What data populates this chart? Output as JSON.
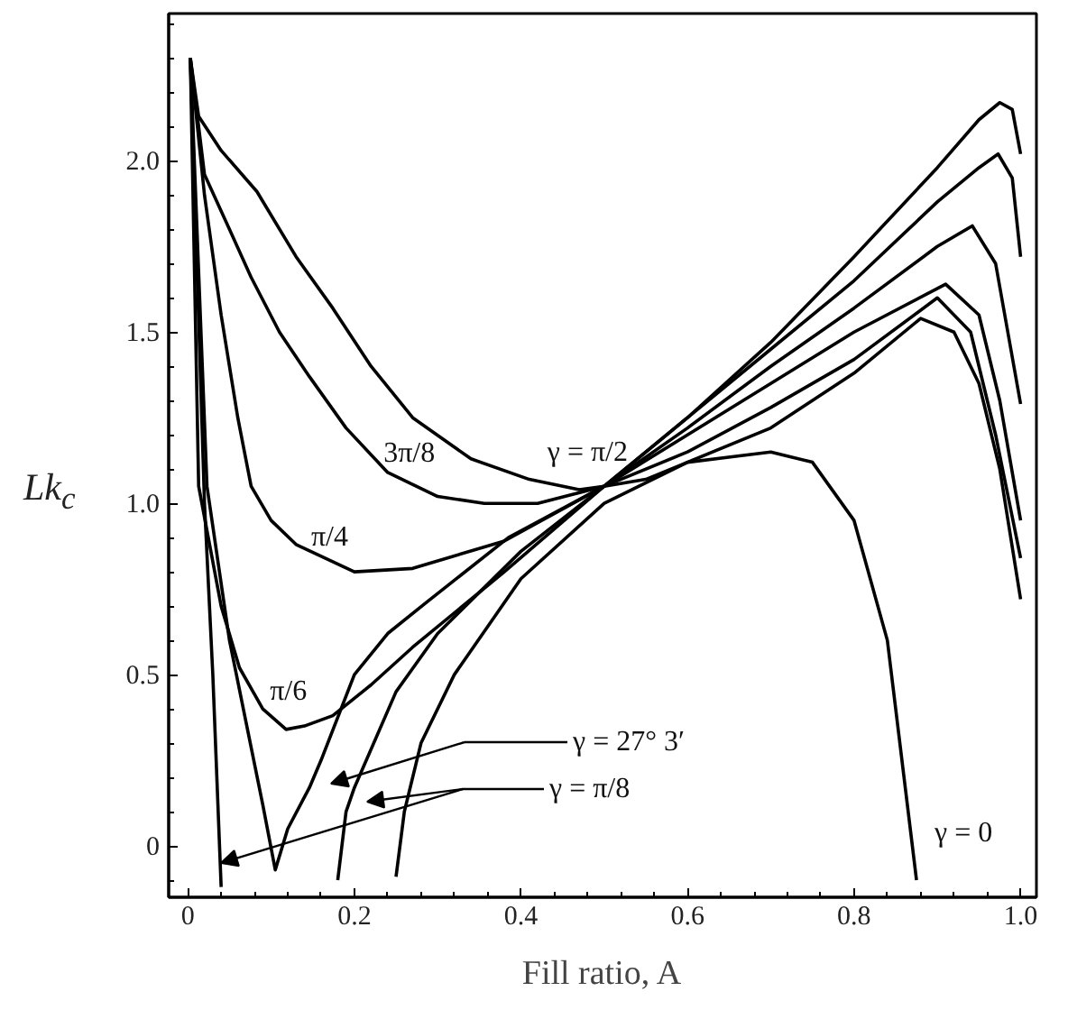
{
  "chart_data": {
    "type": "line",
    "xlabel": "Fill ratio, A",
    "ylabel": "Lk$_{c}$",
    "xlim": [
      -0.023,
      1.019
    ],
    "ylim": [
      -0.15,
      2.43
    ],
    "xticks": [
      0,
      0.2,
      0.4,
      0.6,
      0.8,
      {
        "value": 1.0,
        "label": "1.0"
      }
    ],
    "yticks": [
      0,
      0.5,
      {
        "value": 1.0,
        "label": "1.0"
      },
      1.5,
      {
        "value": 2.0,
        "label": "2.0"
      }
    ],
    "grid": false,
    "marker": "none",
    "line_style": "solid",
    "series": [
      {
        "color": "#000000",
        "x": [
          0.003,
          0.013,
          0.04,
          0.083,
          0.13,
          0.174,
          0.22,
          0.27,
          0.34,
          0.41,
          0.47,
          0.5,
          0.55,
          0.6,
          0.7,
          0.8,
          0.88,
          0.92,
          0.95,
          0.975,
          1.0
        ],
        "values": [
          2.3,
          2.13,
          2.03,
          1.91,
          1.72,
          1.57,
          1.4,
          1.25,
          1.13,
          1.07,
          1.04,
          1.05,
          1.07,
          1.12,
          1.22,
          1.38,
          1.54,
          1.5,
          1.35,
          1.1,
          0.72
        ]
      },
      {
        "color": "#000000",
        "x": [
          0.003,
          0.02,
          0.05,
          0.076,
          0.11,
          0.146,
          0.19,
          0.24,
          0.3,
          0.356,
          0.42,
          0.5,
          0.6,
          0.7,
          0.8,
          0.9,
          0.94,
          0.97,
          1.0
        ],
        "values": [
          2.3,
          1.96,
          1.8,
          1.66,
          1.5,
          1.37,
          1.22,
          1.09,
          1.02,
          1.0,
          1.0,
          1.05,
          1.15,
          1.28,
          1.42,
          1.6,
          1.5,
          1.2,
          0.84
        ]
      },
      {
        "color": "#000000",
        "x": [
          0.003,
          0.02,
          0.04,
          0.06,
          0.076,
          0.1,
          0.13,
          0.2,
          0.27,
          0.38,
          0.5,
          0.6,
          0.7,
          0.8,
          0.91,
          0.95,
          0.975,
          1.0
        ],
        "values": [
          2.3,
          1.9,
          1.55,
          1.25,
          1.05,
          0.95,
          0.88,
          0.8,
          0.81,
          0.89,
          1.05,
          1.2,
          1.35,
          1.5,
          1.64,
          1.55,
          1.3,
          0.95
        ]
      },
      {
        "color": "#000000",
        "x": [
          0.003,
          0.013,
          0.04,
          0.062,
          0.09,
          0.118,
          0.14,
          0.174,
          0.22,
          0.27,
          0.38,
          0.5,
          0.6,
          0.7,
          0.8,
          0.9,
          0.942,
          0.97,
          1.0
        ],
        "values": [
          2.3,
          1.05,
          0.7,
          0.52,
          0.4,
          0.34,
          0.35,
          0.38,
          0.47,
          0.58,
          0.8,
          1.05,
          1.22,
          1.4,
          1.57,
          1.75,
          1.81,
          1.7,
          1.29
        ]
      },
      {
        "color": "#000000",
        "x": [
          0.003,
          0.023,
          0.05,
          0.07,
          0.09,
          0.105,
          0.12,
          0.146,
          0.16,
          0.2,
          0.24,
          0.286,
          0.385,
          0.5,
          0.6,
          0.7,
          0.8,
          0.9,
          0.95,
          0.973,
          0.99,
          1.0
        ],
        "values": [
          2.3,
          1.05,
          0.6,
          0.36,
          0.12,
          -0.07,
          0.05,
          0.17,
          0.25,
          0.5,
          0.62,
          0.71,
          0.9,
          1.05,
          1.25,
          1.45,
          1.65,
          1.88,
          1.98,
          2.02,
          1.95,
          1.72
        ]
      },
      {
        "color": "#000000",
        "x": [
          0.003,
          0.02,
          0.03,
          0.04,
          null,
          0.18,
          0.19,
          0.2,
          0.25,
          0.3,
          0.4,
          0.5,
          0.6,
          0.7,
          0.8,
          0.9,
          0.95,
          0.975,
          0.99,
          1.0
        ],
        "values": [
          2.3,
          1.0,
          0.5,
          -0.12,
          null,
          -0.1,
          0.1,
          0.17,
          0.45,
          0.62,
          0.86,
          1.05,
          1.25,
          1.47,
          1.72,
          1.98,
          2.12,
          2.17,
          2.15,
          2.02
        ]
      },
      {
        "color": "#000000",
        "x": [
          0.25,
          0.26,
          0.28,
          0.32,
          0.4,
          0.5,
          0.6,
          0.7,
          0.75,
          0.8,
          0.84,
          0.86,
          0.875
        ],
        "values": [
          -0.09,
          0.1,
          0.3,
          0.5,
          0.78,
          1.0,
          1.12,
          1.15,
          1.12,
          0.95,
          0.6,
          0.2,
          -0.1
        ]
      }
    ],
    "annotations": [
      {
        "text": "γ = π/2",
        "x": 0.41,
        "y": 1.07
      },
      {
        "text": "3π/8",
        "x": 0.3,
        "y": 1.02
      },
      {
        "text": "π/4",
        "x": 0.2,
        "y": 0.8
      },
      {
        "text": "π/6",
        "x": 0.118,
        "y": 0.34
      },
      "γ = 27° 3′",
      "γ = π/8",
      {
        "text": "γ = 0",
        "x": 0.875,
        "y": -0.1
      }
    ]
  }
}
